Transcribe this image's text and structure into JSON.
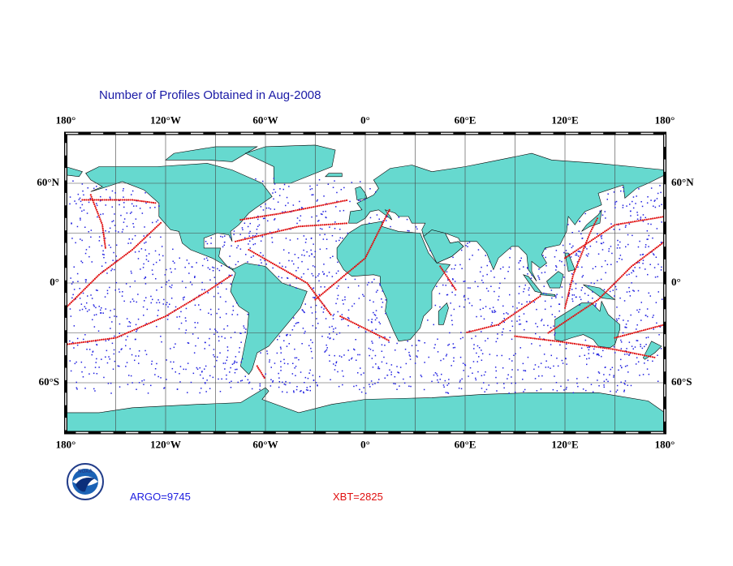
{
  "title": "Number of Profiles Obtained in Aug-2008",
  "map": {
    "top_labels": [
      "180°",
      "120°W",
      "60°W",
      "0°",
      "60°E",
      "120°E",
      "180°"
    ],
    "bottom_labels": [
      "180°",
      "120°W",
      "60°W",
      "0°",
      "60°E",
      "120°E",
      "180°"
    ],
    "left_labels": [
      "60°N",
      "0°",
      "60°S"
    ],
    "right_labels": [
      "60°N",
      "0°",
      "60°S"
    ]
  },
  "counts": {
    "argo": "ARGO=9745",
    "xbt": "XBT=2825"
  },
  "logo": "NOAA"
}
